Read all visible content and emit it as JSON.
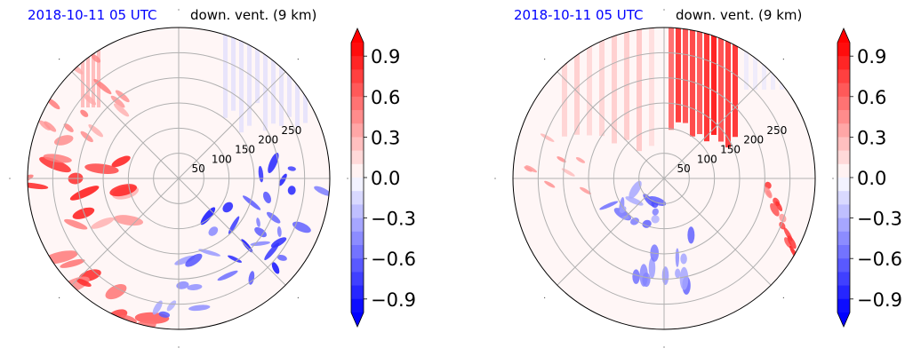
{
  "panels": [
    {
      "id": "left",
      "title_left": "2018-10-11 05 UTC",
      "title_right": "down. vent. (9 km)",
      "radial_labels": [
        "50",
        "100",
        "150",
        "200",
        "250"
      ]
    },
    {
      "id": "right",
      "title_left": "2018-10-11 05 UTC",
      "title_right": "down. vent. (9 km)",
      "radial_labels": [
        "50",
        "100",
        "150",
        "200",
        "250"
      ]
    }
  ],
  "colorbar": {
    "ticks": [
      "0.9",
      "0.6",
      "0.3",
      "0.0",
      "−0.3",
      "−0.6",
      "−0.9"
    ],
    "min": -1.0,
    "max": 1.0,
    "extend": "both",
    "cmap": "bwr"
  },
  "colors": {
    "title_left": "#0000ff",
    "positive": "#ff0000",
    "negative": "#0000ff",
    "grid": "#b0b0b0"
  },
  "chart_data": [
    {
      "type": "heatmap",
      "projection": "polar",
      "title_left": "2018-10-11 05 UTC",
      "title_right": "down. vent. (9 km)",
      "radial_ticks": [
        50,
        100,
        150,
        200,
        250
      ],
      "radial_range": [
        0,
        300
      ],
      "angular_gridlines_deg": [
        0,
        45,
        90,
        135,
        180,
        225,
        270,
        315
      ],
      "colorbar_ticks": [
        0.9,
        0.6,
        0.3,
        0.0,
        -0.3,
        -0.6,
        -0.9
      ],
      "vmin": -1.0,
      "vmax": 1.0,
      "features": [
        {
          "sign": "positive",
          "region": "west / southwest",
          "peak": 0.9
        },
        {
          "sign": "positive",
          "region": "northwest",
          "peak": 0.4
        },
        {
          "sign": "negative",
          "region": "east",
          "peak": -0.9
        },
        {
          "sign": "negative",
          "region": "southeast",
          "peak": -0.7
        },
        {
          "sign": "negative",
          "region": "northeast",
          "peak": -0.3
        }
      ]
    },
    {
      "type": "heatmap",
      "projection": "polar",
      "title_left": "2018-10-11 05 UTC",
      "title_right": "down. vent. (9 km)",
      "radial_ticks": [
        50,
        100,
        150,
        200,
        250
      ],
      "radial_range": [
        0,
        300
      ],
      "angular_gridlines_deg": [
        0,
        45,
        90,
        135,
        180,
        225,
        270,
        315
      ],
      "colorbar_ticks": [
        0.9,
        0.6,
        0.3,
        0.0,
        -0.3,
        -0.6,
        -0.9
      ],
      "vmin": -1.0,
      "vmax": 1.0,
      "features": [
        {
          "sign": "positive",
          "region": "north / northeast",
          "peak": 0.9
        },
        {
          "sign": "positive",
          "region": "east / southeast",
          "peak": 0.6
        },
        {
          "sign": "negative",
          "region": "southwest (near center)",
          "peak": -0.6
        },
        {
          "sign": "negative",
          "region": "south",
          "peak": -0.5
        }
      ]
    }
  ]
}
